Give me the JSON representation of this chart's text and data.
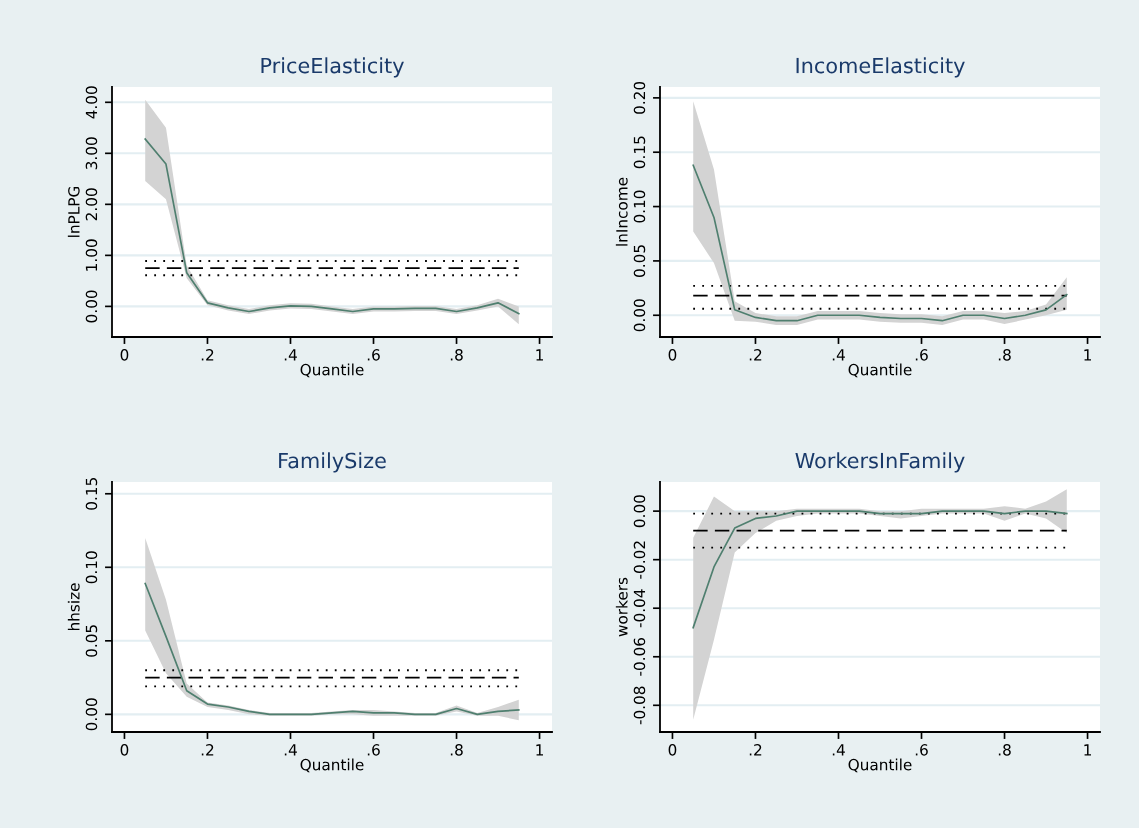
{
  "chart_data": [
    {
      "type": "line",
      "title": "PriceElasticity",
      "xlabel": "Quantile",
      "ylabel": "lnPLPG",
      "grid": "y",
      "xlim": [
        -0.03,
        1.03
      ],
      "ylim": [
        -0.6,
        4.3
      ],
      "xticks": [
        0,
        {
          "value": 0.2,
          "label": ".2"
        },
        {
          "value": 0.4,
          "label": ".4"
        },
        {
          "value": 0.6,
          "label": ".6"
        },
        {
          "value": 0.8,
          "label": ".8"
        },
        1
      ],
      "yticks": [
        {
          "value": 0,
          "label": "0.00"
        },
        {
          "value": 1,
          "label": "1.00"
        },
        {
          "value": 2,
          "label": "2.00"
        },
        {
          "value": 3,
          "label": "3.00"
        },
        {
          "value": 4,
          "label": "4.00"
        }
      ],
      "x": [
        0.05,
        0.1,
        0.15,
        0.2,
        0.25,
        0.3,
        0.35,
        0.4,
        0.45,
        0.5,
        0.55,
        0.6,
        0.65,
        0.7,
        0.75,
        0.8,
        0.85,
        0.9,
        0.95
      ],
      "series": [
        {
          "color": "#4f7f6f",
          "values": [
            3.28,
            2.79,
            0.66,
            0.07,
            -0.03,
            -0.1,
            -0.03,
            0.01,
            0,
            -0.05,
            -0.1,
            -0.05,
            -0.05,
            -0.04,
            -0.04,
            -0.1,
            -0.03,
            0.07,
            -0.14
          ],
          "lower": [
            2.46,
            2.1,
            0.55,
            0.02,
            -0.08,
            -0.15,
            -0.08,
            -0.04,
            -0.05,
            -0.1,
            -0.15,
            -0.1,
            -0.1,
            -0.09,
            -0.09,
            -0.15,
            -0.08,
            0.0,
            -0.35
          ],
          "upper": [
            4.05,
            3.5,
            0.8,
            0.12,
            0.02,
            -0.05,
            0.02,
            0.06,
            0.05,
            0.0,
            -0.05,
            0.0,
            0.0,
            0.01,
            0.01,
            -0.05,
            0.02,
            0.15,
            0.0
          ]
        }
      ],
      "ref_lines": [
        {
          "axis": "y",
          "value": 0.75,
          "color": "#000000",
          "line_style": "dashed"
        },
        {
          "axis": "y",
          "value": 0.89,
          "color": "#000000",
          "line_style": "dotted"
        },
        {
          "axis": "y",
          "value": 0.61,
          "color": "#000000",
          "line_style": "dotted"
        }
      ]
    },
    {
      "type": "line",
      "title": "IncomeElasticity",
      "xlabel": "Quantile",
      "ylabel": "lnIncome",
      "grid": "y",
      "xlim": [
        -0.03,
        1.03
      ],
      "ylim": [
        -0.02,
        0.21
      ],
      "xticks": [
        0,
        {
          "value": 0.2,
          "label": ".2"
        },
        {
          "value": 0.4,
          "label": ".4"
        },
        {
          "value": 0.6,
          "label": ".6"
        },
        {
          "value": 0.8,
          "label": ".8"
        },
        1
      ],
      "yticks": [
        {
          "value": 0,
          "label": "0.00"
        },
        {
          "value": 0.05,
          "label": "0.05"
        },
        {
          "value": 0.1,
          "label": "0.10"
        },
        {
          "value": 0.15,
          "label": "0.15"
        },
        {
          "value": 0.2,
          "label": "0.20"
        }
      ],
      "x": [
        0.05,
        0.1,
        0.15,
        0.2,
        0.25,
        0.3,
        0.35,
        0.4,
        0.45,
        0.5,
        0.55,
        0.6,
        0.65,
        0.7,
        0.75,
        0.8,
        0.85,
        0.9,
        0.95
      ],
      "series": [
        {
          "color": "#4f7f6f",
          "values": [
            0.138,
            0.09,
            0.005,
            -0.002,
            -0.005,
            -0.005,
            0,
            0,
            0,
            -0.002,
            -0.003,
            -0.003,
            -0.005,
            0,
            0,
            -0.003,
            0,
            0.005,
            0.019
          ],
          "lower": [
            0.077,
            0.048,
            -0.005,
            -0.006,
            -0.009,
            -0.009,
            -0.004,
            -0.004,
            -0.004,
            -0.006,
            -0.007,
            -0.007,
            -0.009,
            -0.004,
            -0.004,
            -0.008,
            -0.004,
            0.0,
            0.005
          ],
          "upper": [
            0.197,
            0.134,
            0.013,
            0.002,
            -0.001,
            -0.001,
            0.004,
            0.004,
            0.004,
            0.002,
            0.001,
            0.001,
            -0.001,
            0.004,
            0.004,
            0.002,
            0.004,
            0.01,
            0.035
          ]
        }
      ],
      "ref_lines": [
        {
          "axis": "y",
          "value": 0.018,
          "color": "#000000",
          "line_style": "dashed"
        },
        {
          "axis": "y",
          "value": 0.027,
          "color": "#000000",
          "line_style": "dotted"
        },
        {
          "axis": "y",
          "value": 0.006,
          "color": "#000000",
          "line_style": "dotted"
        }
      ]
    },
    {
      "type": "line",
      "title": "FamilySize",
      "xlabel": "Quantile",
      "ylabel": "hhsize",
      "grid": "y",
      "xlim": [
        -0.03,
        1.03
      ],
      "ylim": [
        -0.012,
        0.158
      ],
      "xticks": [
        0,
        {
          "value": 0.2,
          "label": ".2"
        },
        {
          "value": 0.4,
          "label": ".4"
        },
        {
          "value": 0.6,
          "label": ".6"
        },
        {
          "value": 0.8,
          "label": ".8"
        },
        1
      ],
      "yticks": [
        {
          "value": 0,
          "label": "0.00"
        },
        {
          "value": 0.05,
          "label": "0.05"
        },
        {
          "value": 0.1,
          "label": "0.10"
        },
        {
          "value": 0.15,
          "label": "0.15"
        }
      ],
      "x": [
        0.05,
        0.1,
        0.15,
        0.2,
        0.25,
        0.3,
        0.35,
        0.4,
        0.45,
        0.5,
        0.55,
        0.6,
        0.65,
        0.7,
        0.75,
        0.8,
        0.85,
        0.9,
        0.95
      ],
      "series": [
        {
          "color": "#4f7f6f",
          "values": [
            0.089,
            0.053,
            0.016,
            0.007,
            0.005,
            0.002,
            0,
            0,
            0,
            0.001,
            0.002,
            0.001,
            0.001,
            0,
            0,
            0.004,
            0,
            0.002,
            0.003
          ],
          "lower": [
            0.057,
            0.028,
            0.012,
            0.005,
            0.003,
            0.0,
            -0.001,
            -0.001,
            -0.001,
            0.0,
            0.0,
            -0.001,
            -0.001,
            -0.001,
            -0.001,
            0.002,
            -0.001,
            -0.001,
            -0.004
          ],
          "upper": [
            0.12,
            0.078,
            0.021,
            0.008,
            0.006,
            0.003,
            0.001,
            0.001,
            0.001,
            0.002,
            0.003,
            0.003,
            0.002,
            0.001,
            0.001,
            0.006,
            0.001,
            0.005,
            0.01
          ]
        }
      ],
      "ref_lines": [
        {
          "axis": "y",
          "value": 0.025,
          "color": "#000000",
          "line_style": "dashed"
        },
        {
          "axis": "y",
          "value": 0.03,
          "color": "#000000",
          "line_style": "dotted"
        },
        {
          "axis": "y",
          "value": 0.019,
          "color": "#000000",
          "line_style": "dotted"
        }
      ]
    },
    {
      "type": "line",
      "title": "WorkersInFamily",
      "xlabel": "Quantile",
      "ylabel": "workers",
      "grid": "y",
      "xlim": [
        -0.03,
        1.03
      ],
      "ylim": [
        -0.091,
        0.012
      ],
      "xticks": [
        0,
        {
          "value": 0.2,
          "label": ".2"
        },
        {
          "value": 0.4,
          "label": ".4"
        },
        {
          "value": 0.6,
          "label": ".6"
        },
        {
          "value": 0.8,
          "label": ".8"
        },
        1
      ],
      "yticks": [
        {
          "value": -0.08,
          "label": "-0.08"
        },
        {
          "value": -0.06,
          "label": "-0.06"
        },
        {
          "value": -0.04,
          "label": "-0.04"
        },
        {
          "value": -0.02,
          "label": "-0.02"
        },
        {
          "value": 0,
          "label": "0.00"
        }
      ],
      "x": [
        0.05,
        0.1,
        0.15,
        0.2,
        0.25,
        0.3,
        0.35,
        0.4,
        0.45,
        0.5,
        0.55,
        0.6,
        0.65,
        0.7,
        0.75,
        0.8,
        0.85,
        0.9,
        0.95
      ],
      "series": [
        {
          "color": "#4f7f6f",
          "values": [
            -0.048,
            -0.023,
            -0.007,
            -0.003,
            -0.002,
            0,
            0,
            0,
            0,
            -0.001,
            -0.001,
            -0.001,
            0,
            0,
            0,
            -0.001,
            0,
            0,
            -0.001
          ],
          "lower": [
            -0.086,
            -0.053,
            -0.017,
            -0.009,
            -0.004,
            -0.002,
            -0.001,
            -0.001,
            -0.001,
            -0.002,
            -0.003,
            -0.002,
            -0.001,
            -0.001,
            -0.001,
            -0.004,
            -0.001,
            -0.003,
            -0.009
          ],
          "upper": [
            -0.011,
            0.006,
            0.0,
            0.0,
            0.0,
            0.001,
            0.001,
            0.001,
            0.001,
            0.0,
            0.0,
            0.001,
            0.001,
            0.001,
            0.001,
            0.002,
            0.001,
            0.004,
            0.009
          ]
        }
      ],
      "ref_lines": [
        {
          "axis": "y",
          "value": -0.008,
          "color": "#000000",
          "line_style": "dashed"
        },
        {
          "axis": "y",
          "value": -0.001,
          "color": "#000000",
          "line_style": "dotted"
        },
        {
          "axis": "y",
          "value": -0.015,
          "color": "#000000",
          "line_style": "dotted"
        }
      ]
    }
  ]
}
